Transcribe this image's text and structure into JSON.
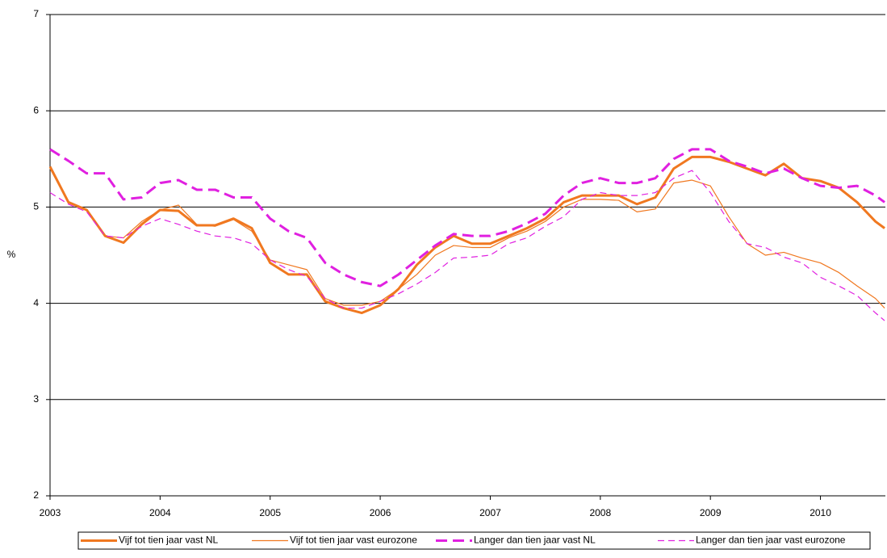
{
  "chart_data": {
    "type": "line",
    "y_label": "%",
    "x": [
      2003,
      2003.167,
      2003.333,
      2003.5,
      2003.667,
      2003.833,
      2004,
      2004.167,
      2004.333,
      2004.5,
      2004.667,
      2004.833,
      2005,
      2005.167,
      2005.333,
      2005.5,
      2005.667,
      2005.833,
      2006,
      2006.167,
      2006.333,
      2006.5,
      2006.667,
      2006.833,
      2007,
      2007.167,
      2007.333,
      2007.5,
      2007.667,
      2007.833,
      2008,
      2008.167,
      2008.333,
      2008.5,
      2008.667,
      2008.833,
      2009,
      2009.167,
      2009.333,
      2009.5,
      2009.667,
      2009.833,
      2010,
      2010.167,
      2010.333,
      2010.5,
      2010.583
    ],
    "series": [
      {
        "name": "Vijf tot tien jaar vast NL",
        "color": "#f07820",
        "values": [
          5.42,
          5.05,
          4.97,
          4.7,
          4.63,
          4.82,
          4.97,
          4.96,
          4.81,
          4.81,
          4.88,
          4.78,
          4.42,
          4.3,
          4.3,
          4.02,
          3.95,
          3.9,
          3.98,
          4.15,
          4.4,
          4.58,
          4.7,
          4.62,
          4.62,
          4.7,
          4.78,
          4.88,
          5.05,
          5.12,
          5.12,
          5.12,
          5.03,
          5.1,
          5.4,
          5.52,
          5.52,
          5.47,
          5.4,
          5.33,
          5.45,
          5.3,
          5.27,
          5.2,
          5.05,
          4.85,
          4.78
        ]
      },
      {
        "name": "Vijf tot tien jaar vast eurozone",
        "color": "#f07820",
        "values": [
          5.4,
          5.05,
          4.97,
          4.7,
          4.68,
          4.85,
          4.97,
          5.02,
          4.82,
          4.8,
          4.87,
          4.75,
          4.45,
          4.4,
          4.35,
          4.05,
          3.98,
          3.98,
          4.02,
          4.15,
          4.3,
          4.5,
          4.6,
          4.58,
          4.58,
          4.68,
          4.75,
          4.85,
          5.0,
          5.08,
          5.08,
          5.07,
          4.95,
          4.98,
          5.25,
          5.28,
          5.22,
          4.9,
          4.62,
          4.5,
          4.53,
          4.47,
          4.42,
          4.32,
          4.18,
          4.05,
          3.95
        ]
      },
      {
        "name": "Langer dan tien jaar vast NL",
        "color": "#e020e0",
        "values": [
          5.6,
          5.48,
          5.35,
          5.35,
          5.08,
          5.1,
          5.25,
          5.28,
          5.18,
          5.18,
          5.1,
          5.1,
          4.88,
          4.75,
          4.68,
          4.42,
          4.3,
          4.22,
          4.18,
          4.3,
          4.45,
          4.6,
          4.72,
          4.7,
          4.7,
          4.75,
          4.83,
          4.93,
          5.12,
          5.25,
          5.3,
          5.25,
          5.25,
          5.3,
          5.5,
          5.6,
          5.6,
          5.48,
          5.42,
          5.35,
          5.4,
          5.3,
          5.22,
          5.2,
          5.22,
          5.12,
          5.05
        ]
      },
      {
        "name": "Langer dan tien jaar vast eurozone",
        "color": "#e020e0",
        "values": [
          5.15,
          5.03,
          4.95,
          4.7,
          4.68,
          4.8,
          4.88,
          4.82,
          4.75,
          4.7,
          4.68,
          4.62,
          4.45,
          4.35,
          4.28,
          4.05,
          3.95,
          3.95,
          4.02,
          4.1,
          4.2,
          4.32,
          4.47,
          4.48,
          4.5,
          4.62,
          4.68,
          4.8,
          4.9,
          5.08,
          5.15,
          5.12,
          5.12,
          5.15,
          5.3,
          5.38,
          5.15,
          4.85,
          4.62,
          4.58,
          4.48,
          4.42,
          4.27,
          4.18,
          4.08,
          3.9,
          3.82
        ]
      }
    ],
    "xlim": [
      2003,
      2010.59
    ],
    "xticks": [
      2003,
      2004,
      2005,
      2006,
      2007,
      2008,
      2009,
      2010
    ],
    "ylim": [
      2,
      7
    ],
    "yticks": [
      2,
      3,
      4,
      5,
      6,
      7
    ],
    "grid": true,
    "legend": "bottom"
  }
}
